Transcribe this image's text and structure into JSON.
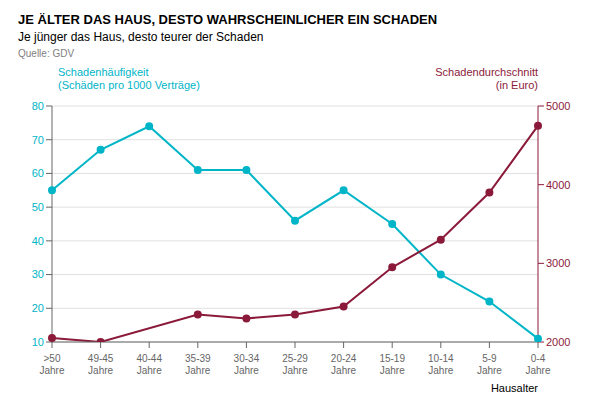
{
  "chart_data": {
    "type": "line",
    "title": "JE ÄLTER DAS HAUS, DESTO WAHRSCHEINLICHER EIN SCHADEN",
    "subtitle": "Je jünger das Haus, desto teurer der Schaden",
    "source": "Quelle: GDV",
    "x_label": "Hausalter",
    "categories": [
      ">50\nJahre",
      "49-45\nJahre",
      "40-44\nJahre",
      "35-39\nJahre",
      "30-34\nJahre",
      "25-29\nJahre",
      "20-24\nJahre",
      "15-19\nJahre",
      "10-14\nJahre",
      "5-9\nJahre",
      "0-4\nJahre"
    ],
    "series": [
      {
        "name": "Schadenhäufigkeit\n(Schäden pro 1000 Verträge)",
        "color": "#00B5C8",
        "marker": "circle",
        "values": [
          55,
          67,
          74,
          61,
          61,
          46,
          55,
          45,
          30,
          22,
          11
        ]
      },
      {
        "name": "Schadendurchschnitt\n(in Euro)",
        "color": "#8B1A3A",
        "marker": "circle",
        "axis": "y2",
        "values": [
          2050,
          2000,
          null,
          2350,
          2300,
          2350,
          2450,
          2950,
          3300,
          3900,
          4750
        ]
      }
    ],
    "ylim": [
      10,
      80
    ],
    "yticks": [
      10,
      20,
      30,
      40,
      50,
      60,
      70,
      80
    ],
    "y2lim": [
      2000,
      5000
    ],
    "y2ticks": [
      2000,
      3000,
      4000,
      5000
    ],
    "grid": true
  }
}
